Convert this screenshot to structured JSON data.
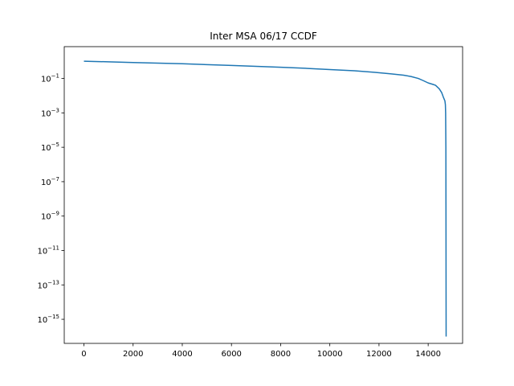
{
  "chart_data": {
    "type": "line",
    "title": "Inter MSA 06/17 CCDF",
    "xlabel": "",
    "ylabel": "",
    "xlim": [
      -800,
      15400
    ],
    "ylim_log10": [
      -16.4,
      0.85
    ],
    "yscale": "log",
    "grid": false,
    "x_ticks": [
      {
        "value": 0,
        "label": "0"
      },
      {
        "value": 2000,
        "label": "2000"
      },
      {
        "value": 4000,
        "label": "4000"
      },
      {
        "value": 6000,
        "label": "6000"
      },
      {
        "value": 8000,
        "label": "8000"
      },
      {
        "value": 10000,
        "label": "10000"
      },
      {
        "value": 12000,
        "label": "12000"
      },
      {
        "value": 14000,
        "label": "14000"
      }
    ],
    "y_ticks": [
      {
        "exp": -1,
        "base": "10",
        "sup": "−1"
      },
      {
        "exp": -3,
        "base": "10",
        "sup": "−3"
      },
      {
        "exp": -5,
        "base": "10",
        "sup": "−5"
      },
      {
        "exp": -7,
        "base": "10",
        "sup": "−7"
      },
      {
        "exp": -9,
        "base": "10",
        "sup": "−9"
      },
      {
        "exp": -11,
        "base": "10",
        "sup": "−11"
      },
      {
        "exp": -13,
        "base": "10",
        "sup": "−13"
      },
      {
        "exp": -15,
        "base": "10",
        "sup": "−15"
      }
    ],
    "series": [
      {
        "color": "#1f77b4",
        "x": [
          0,
          1000,
          2000,
          3000,
          4000,
          5000,
          6000,
          7000,
          8000,
          9000,
          10000,
          11000,
          11800,
          12500,
          13000,
          13300,
          13600,
          13800,
          14000,
          14200,
          14300,
          14450,
          14550,
          14620,
          14680,
          14700,
          14710,
          14720,
          14725,
          14730
        ],
        "y": [
          1.0,
          0.93,
          0.85,
          0.78,
          0.72,
          0.64,
          0.57,
          0.51,
          0.45,
          0.39,
          0.33,
          0.28,
          0.23,
          0.185,
          0.155,
          0.13,
          0.1,
          0.075,
          0.055,
          0.045,
          0.04,
          0.025,
          0.015,
          0.008,
          0.005,
          0.003,
          0.001,
          1e-05,
          1e-10,
          1e-16
        ]
      }
    ]
  }
}
